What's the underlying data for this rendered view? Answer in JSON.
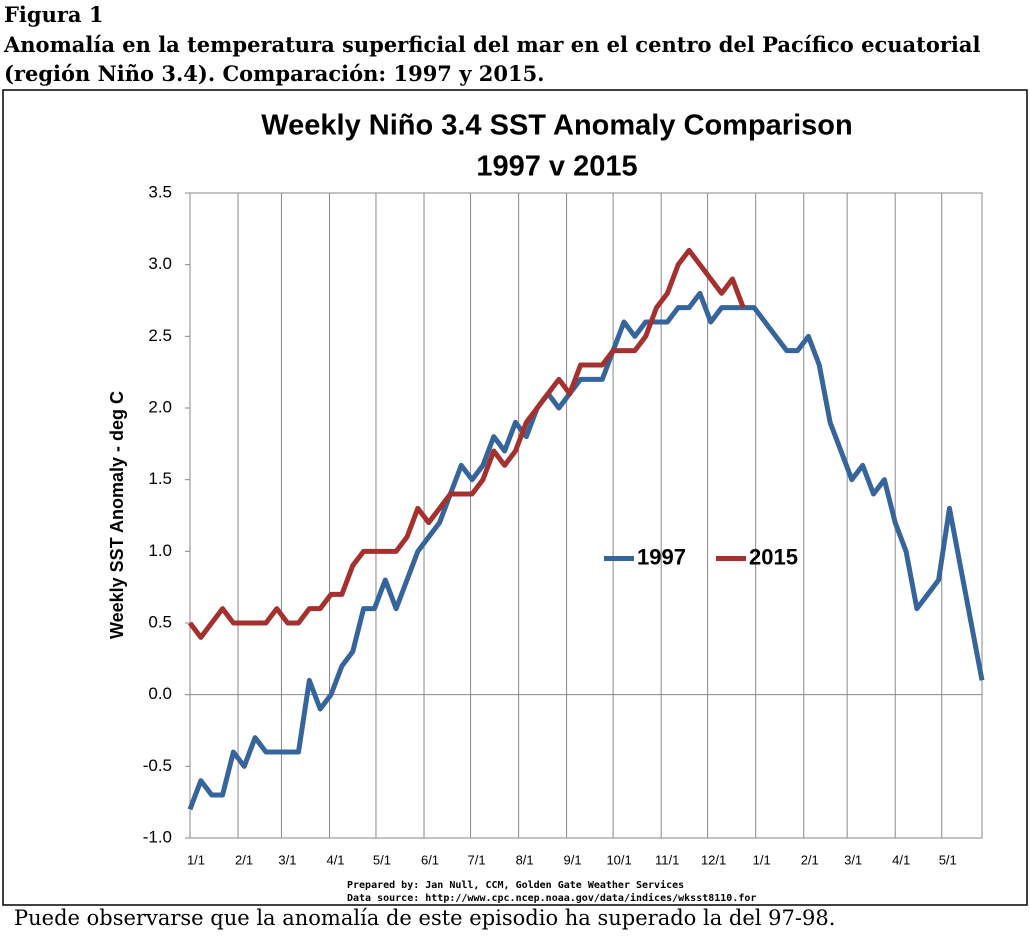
{
  "figure_label": "Figura 1",
  "caption": "Anomalía en la temperatura superficial del mar en el centro del Pacífico ecuatorial (región Niño 3.4). Comparación: 1997 y 2015.",
  "note": "Puede observarse que la anomalía de este episodio ha superado la del 97-98.",
  "chart_data": {
    "type": "line",
    "title": "Weekly Niño 3.4 SST Anomaly Comparison",
    "subtitle": "1997 v 2015",
    "y_label": "Weekly SST Anomaly - deg C",
    "credits": [
      "Prepared by: Jan Null, CCM, Golden Gate Weather Services",
      "Data source: http://www.cpc.ncep.noaa.gov/data/indices/wksst8110.for"
    ],
    "x": [
      0,
      1,
      2,
      3,
      4,
      5,
      6,
      7,
      8,
      9,
      10,
      11,
      12,
      13,
      14,
      15,
      16,
      17,
      18,
      19,
      20,
      21,
      22,
      23,
      24,
      25,
      26,
      27,
      28,
      29,
      30,
      31,
      32,
      33,
      34,
      35,
      36,
      37,
      38,
      39,
      40,
      41,
      42,
      43,
      44,
      45,
      46,
      47,
      48,
      49,
      50,
      51,
      52,
      53,
      54,
      55,
      56,
      57,
      58,
      59,
      60,
      61,
      62,
      63,
      64,
      65,
      66,
      67,
      68,
      69,
      70,
      71,
      72,
      73
    ],
    "series": [
      {
        "name": "1997",
        "color": "#36659b",
        "values": [
          -0.8,
          -0.6,
          -0.7,
          -0.7,
          -0.4,
          -0.5,
          -0.3,
          -0.4,
          -0.4,
          -0.4,
          -0.4,
          0.1,
          -0.1,
          0.0,
          0.2,
          0.3,
          0.6,
          0.6,
          0.8,
          0.6,
          0.8,
          1.0,
          1.1,
          1.2,
          1.4,
          1.6,
          1.5,
          1.6,
          1.8,
          1.7,
          1.9,
          1.8,
          2.0,
          2.1,
          2.0,
          2.1,
          2.2,
          2.2,
          2.2,
          2.4,
          2.6,
          2.5,
          2.6,
          2.6,
          2.6,
          2.7,
          2.7,
          2.8,
          2.6,
          2.7,
          2.7,
          2.7,
          2.7,
          2.6,
          2.5,
          2.4,
          2.4,
          2.5,
          2.3,
          1.9,
          1.7,
          1.5,
          1.6,
          1.4,
          1.5,
          1.2,
          1.0,
          0.6,
          0.7,
          0.8,
          1.3,
          0.9,
          0.5,
          0.1
        ]
      },
      {
        "name": "2015",
        "color": "#a5312f",
        "values": [
          0.5,
          0.4,
          0.5,
          0.6,
          0.5,
          0.5,
          0.5,
          0.5,
          0.6,
          0.5,
          0.5,
          0.6,
          0.6,
          0.7,
          0.7,
          0.9,
          1.0,
          1.0,
          1.0,
          1.0,
          1.1,
          1.3,
          1.2,
          1.3,
          1.4,
          1.4,
          1.4,
          1.5,
          1.7,
          1.6,
          1.7,
          1.9,
          2.0,
          2.1,
          2.2,
          2.1,
          2.3,
          2.3,
          2.3,
          2.4,
          2.4,
          2.4,
          2.5,
          2.7,
          2.8,
          3.0,
          3.1,
          3.0,
          2.9,
          2.8,
          2.9,
          2.7,
          null,
          null,
          null,
          null,
          null,
          null,
          null,
          null,
          null,
          null,
          null,
          null,
          null,
          null,
          null,
          null,
          null,
          null,
          null,
          null,
          null,
          null
        ]
      }
    ],
    "xlim": [
      0,
      73
    ],
    "xticks": [
      {
        "value": 0,
        "label": "1/1"
      },
      {
        "value": 4.43,
        "label": "2/1"
      },
      {
        "value": 8.43,
        "label": "3/1"
      },
      {
        "value": 12.86,
        "label": "4/1"
      },
      {
        "value": 17.14,
        "label": "5/1"
      },
      {
        "value": 21.57,
        "label": "6/1"
      },
      {
        "value": 25.86,
        "label": "7/1"
      },
      {
        "value": 30.29,
        "label": "8/1"
      },
      {
        "value": 34.71,
        "label": "9/1"
      },
      {
        "value": 39,
        "label": "10/1"
      },
      {
        "value": 43.43,
        "label": "11/1"
      },
      {
        "value": 47.71,
        "label": "12/1"
      },
      {
        "value": 52.14,
        "label": "1/1"
      },
      {
        "value": 56.57,
        "label": "2/1"
      },
      {
        "value": 60.57,
        "label": "3/1"
      },
      {
        "value": 65,
        "label": "4/1"
      },
      {
        "value": 69.29,
        "label": "5/1"
      }
    ],
    "ylim": [
      -1,
      3.5
    ],
    "yticks": [
      -0.5,
      {
        "value": -1,
        "label": "-1.0"
      },
      {
        "value": 0,
        "label": "0.0"
      },
      0.5,
      {
        "value": 1,
        "label": "1.0"
      },
      1.5,
      {
        "value": 2,
        "label": "2.0"
      },
      2.5,
      {
        "value": 3,
        "label": "3.0"
      },
      3.5
    ],
    "grid": "x",
    "legend_position": "center-right"
  }
}
